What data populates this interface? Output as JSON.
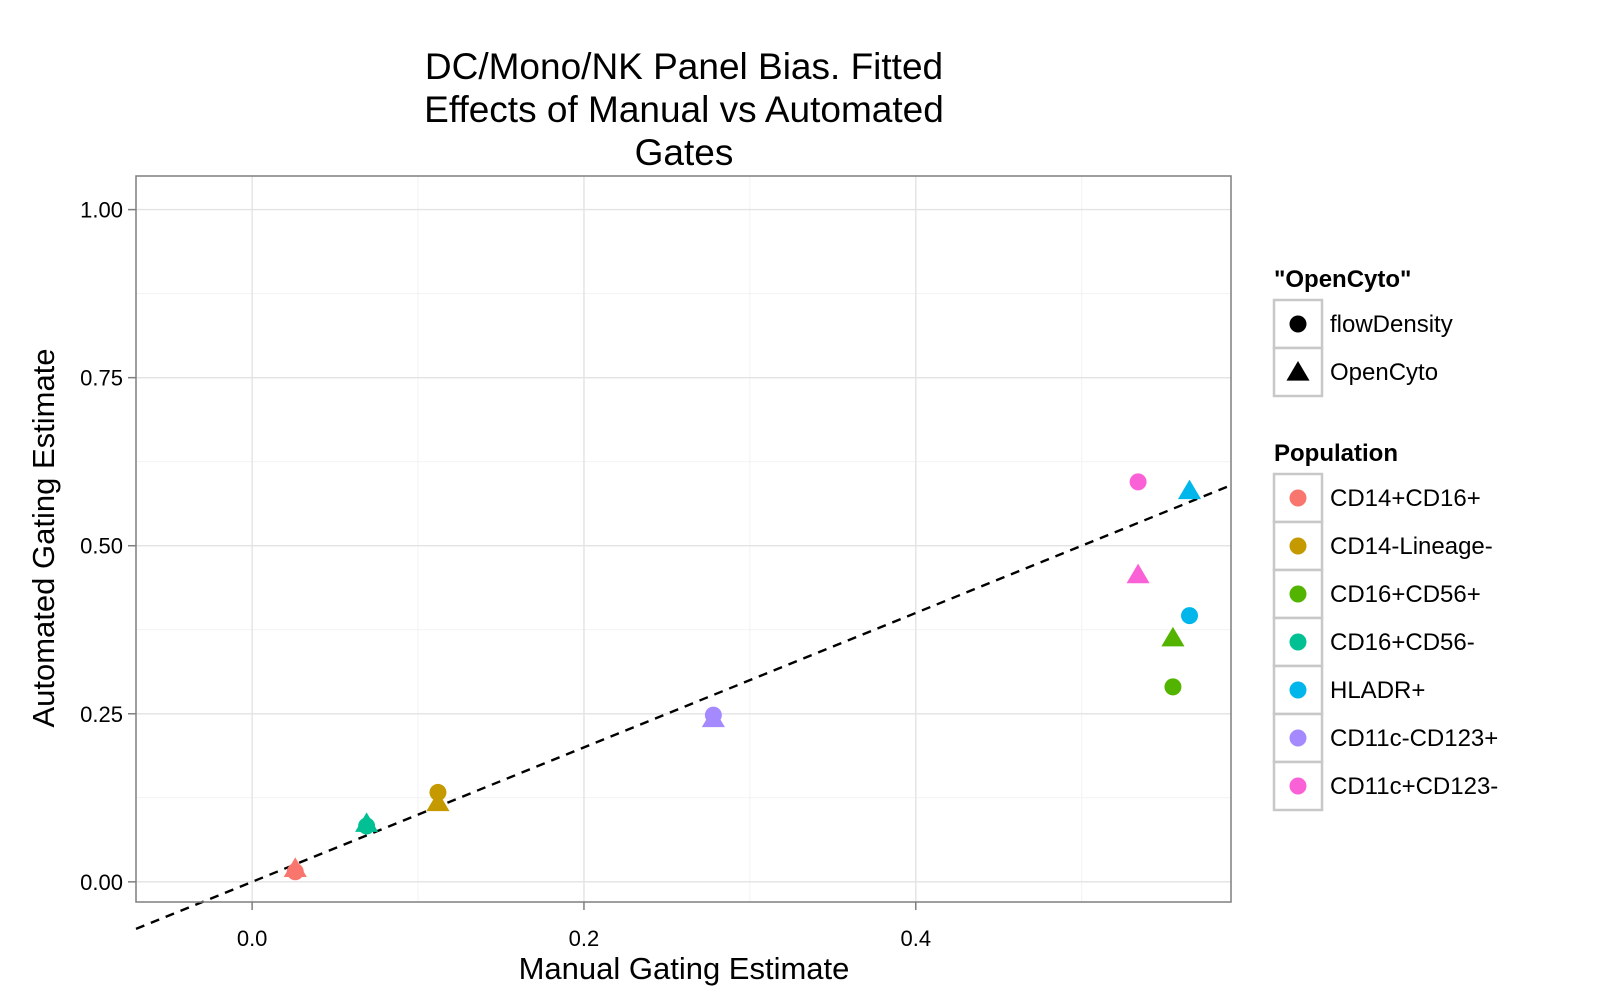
{
  "chart_data": {
    "type": "scatter",
    "title": [
      "DC/Mono/NK Panel Bias. Fitted",
      "Effects of Manual vs Automated",
      "Gates"
    ],
    "xlabel": "Manual Gating Estimate",
    "ylabel": "Automated Gating Estimate",
    "xlim": [
      -0.07,
      0.59
    ],
    "ylim": [
      -0.03,
      1.05
    ],
    "x_ticks": [
      0.0,
      0.2,
      0.4
    ],
    "x_tick_labels": [
      "0.0",
      "0.2",
      "0.4"
    ],
    "y_ticks": [
      0.0,
      0.25,
      0.5,
      0.75,
      1.0
    ],
    "y_tick_labels": [
      "0.00",
      "0.25",
      "0.50",
      "0.75",
      "1.00"
    ],
    "grid": true,
    "reference_line": {
      "style": "dashed",
      "slope": 1,
      "intercept": 0
    },
    "shape_legend": {
      "title": "\"OpenCyto\"",
      "entries": [
        {
          "label": "flowDensity",
          "shape": "circle"
        },
        {
          "label": "OpenCyto",
          "shape": "triangle"
        }
      ]
    },
    "color_legend": {
      "title": "Population",
      "entries": [
        {
          "label": "CD14+CD16+",
          "color": "#F8766D"
        },
        {
          "label": "CD14-Lineage-",
          "color": "#C49A00"
        },
        {
          "label": "CD16+CD56+",
          "color": "#53B400"
        },
        {
          "label": "CD16+CD56-",
          "color": "#00C094"
        },
        {
          "label": "HLADR+",
          "color": "#00B6EB"
        },
        {
          "label": "CD11c-CD123+",
          "color": "#A58AFF"
        },
        {
          "label": "CD11c+CD123-",
          "color": "#FB61D7"
        }
      ]
    },
    "legend_position": "right",
    "series": [
      {
        "population": "CD14+CD16+",
        "color": "#F8766D",
        "method": "flowDensity",
        "x": 0.026,
        "y": 0.015
      },
      {
        "population": "CD14+CD16+",
        "color": "#F8766D",
        "method": "OpenCyto",
        "x": 0.026,
        "y": 0.02
      },
      {
        "population": "CD16+CD56-",
        "color": "#00C094",
        "method": "flowDensity",
        "x": 0.069,
        "y": 0.083
      },
      {
        "population": "CD16+CD56-",
        "color": "#00C094",
        "method": "OpenCyto",
        "x": 0.069,
        "y": 0.087
      },
      {
        "population": "CD14-Lineage-",
        "color": "#C49A00",
        "method": "flowDensity",
        "x": 0.112,
        "y": 0.133
      },
      {
        "population": "CD14-Lineage-",
        "color": "#C49A00",
        "method": "OpenCyto",
        "x": 0.112,
        "y": 0.118
      },
      {
        "population": "CD11c-CD123+",
        "color": "#A58AFF",
        "method": "flowDensity",
        "x": 0.278,
        "y": 0.248
      },
      {
        "population": "CD11c-CD123+",
        "color": "#A58AFF",
        "method": "OpenCyto",
        "x": 0.278,
        "y": 0.243
      },
      {
        "population": "CD11c+CD123-",
        "color": "#FB61D7",
        "method": "flowDensity",
        "x": 0.534,
        "y": 0.595
      },
      {
        "population": "CD11c+CD123-",
        "color": "#FB61D7",
        "method": "OpenCyto",
        "x": 0.534,
        "y": 0.457
      },
      {
        "population": "CD16+CD56+",
        "color": "#53B400",
        "method": "flowDensity",
        "x": 0.555,
        "y": 0.29
      },
      {
        "population": "CD16+CD56+",
        "color": "#53B400",
        "method": "OpenCyto",
        "x": 0.555,
        "y": 0.363
      },
      {
        "population": "HLADR+",
        "color": "#00B6EB",
        "method": "flowDensity",
        "x": 0.565,
        "y": 0.396
      },
      {
        "population": "HLADR+",
        "color": "#00B6EB",
        "method": "OpenCyto",
        "x": 0.565,
        "y": 0.582
      }
    ]
  }
}
